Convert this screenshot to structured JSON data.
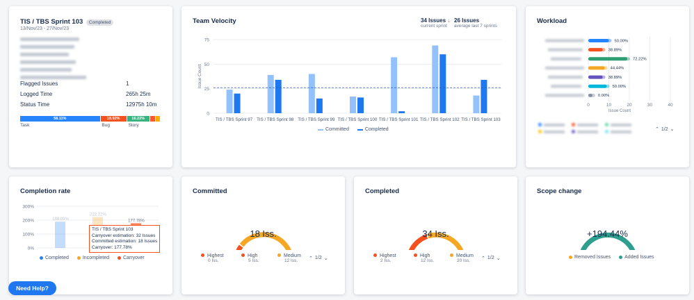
{
  "sprint_card": {
    "title": "TIS / TBS Sprint 103",
    "badge": "Completed",
    "dates": "13/Nov/23 - 27/Nov/23",
    "stats": [
      {
        "label": "Flagged Issues",
        "value": "1"
      },
      {
        "label": "Logged Time",
        "value": "265h 25m"
      },
      {
        "label": "Status Time",
        "value": "12975h 10m"
      }
    ],
    "type_bar": [
      {
        "pct": "58.11%",
        "label": "Task",
        "color": "#2684ff",
        "width": 58.11
      },
      {
        "pct": "18.92%",
        "label": "Bug",
        "color": "#f4511e",
        "width": 18.92
      },
      {
        "pct": "16.22%",
        "label": "Story",
        "color": "#36b37e",
        "width": 16.22
      },
      {
        "pct": "",
        "label": "",
        "color": "#ff5630",
        "width": 3.8
      },
      {
        "pct": "",
        "label": "",
        "color": "#ffab00",
        "width": 2.95
      }
    ]
  },
  "velocity": {
    "title": "Team Velocity",
    "stat1_value": "34 Issues",
    "stat1_label": "current sprint",
    "stat2_value": "26 Issues",
    "stat2_label": "average last 7 sprints",
    "legend_committed": "Committed",
    "legend_completed": "Completed"
  },
  "workload": {
    "title": "Workload",
    "x_label": "Issue Count"
  },
  "completion_rate": {
    "title": "Completion rate",
    "tooltip_title": "TIS / TBS Sprint 103",
    "tooltip_l1": "Carryover estimation: 32 Issues",
    "tooltip_l2": "Committed estimation: 18 Issues",
    "tooltip_l3": "Carryover: 177.78%",
    "legend": [
      "Completed",
      "Incompleted",
      "Carryover"
    ]
  },
  "committed": {
    "title": "Committed",
    "center": "18 Iss.",
    "legend": [
      {
        "name": "Highest",
        "value": "0 Iss.",
        "color": "#f4511e"
      },
      {
        "name": "High",
        "value": "5 Iss.",
        "color": "#f4511e"
      },
      {
        "name": "Medium",
        "value": "12 Iss.",
        "color": "#f5a623"
      }
    ],
    "pager": "1/2"
  },
  "completed": {
    "title": "Completed",
    "center": "34 Iss.",
    "legend": [
      {
        "name": "Highest",
        "value": "2 Iss.",
        "color": "#f4511e"
      },
      {
        "name": "High",
        "value": "12 Iss.",
        "color": "#f4511e"
      },
      {
        "name": "Medium",
        "value": "20 Iss.",
        "color": "#f5a623"
      }
    ],
    "pager": "1/2"
  },
  "scope": {
    "title": "Scope change",
    "center": "+194.44%",
    "legend_removed": "Removed Issues",
    "legend_added": "Added Issues"
  },
  "help_button": "Need Help?",
  "chart_data": [
    {
      "type": "bar",
      "title": "Team Velocity",
      "ylabel": "Issue Count",
      "ylim": [
        0,
        75
      ],
      "yticks": [
        "0",
        "25",
        "50",
        "75"
      ],
      "categories": [
        "TIS / TBS Sprint 97",
        "TIS / TBS Sprint 98",
        "TIS / TBS Sprint 99",
        "TIS / TBS Sprint 100",
        "TIS / TBS Sprint 101",
        "TIS / TBS Sprint 102",
        "TIS / TBS Sprint 103"
      ],
      "series": [
        {
          "name": "Committed",
          "values": [
            24,
            39,
            40,
            17,
            57,
            69,
            18
          ],
          "color": "#93c1fb"
        },
        {
          "name": "Completed",
          "values": [
            20,
            34,
            15,
            16,
            2,
            60,
            34
          ],
          "color": "#1f78f0"
        }
      ],
      "average_line": 26
    },
    {
      "type": "bar",
      "title": "Workload",
      "orientation": "horizontal",
      "xlabel": "Issue Count",
      "xlim": [
        0,
        40
      ],
      "xticks": [
        "0",
        "10",
        "20",
        "30",
        "40"
      ],
      "values": [
        10,
        7,
        19,
        8,
        7,
        9,
        2
      ],
      "labels": [
        "50.00%",
        "38.89%",
        "72.22%",
        "44.44%",
        "38.89%",
        "50.00%",
        "0.00%"
      ],
      "colors": [
        "#2684ff",
        "#f4511e",
        "#2e9e74",
        "#f5a623",
        "#6554c0",
        "#00b8d9",
        "#8993a4"
      ],
      "pager": "1/2"
    },
    {
      "type": "bar",
      "title": "Completion rate",
      "yticks": [
        "0%",
        "100%",
        "200%",
        "300%"
      ],
      "ylim": [
        0,
        300
      ],
      "series": [
        {
          "name": "Completed",
          "values": [
            188.89
          ],
          "color": "#2684ff"
        },
        {
          "name": "Incompleted",
          "values": [
            222.22
          ],
          "color": "#f5a623"
        },
        {
          "name": "Carryover",
          "values": [
            177.78
          ],
          "color": "#f4511e"
        }
      ],
      "value_labels": [
        "188.89%",
        "222.22%",
        "177.78%"
      ]
    }
  ]
}
